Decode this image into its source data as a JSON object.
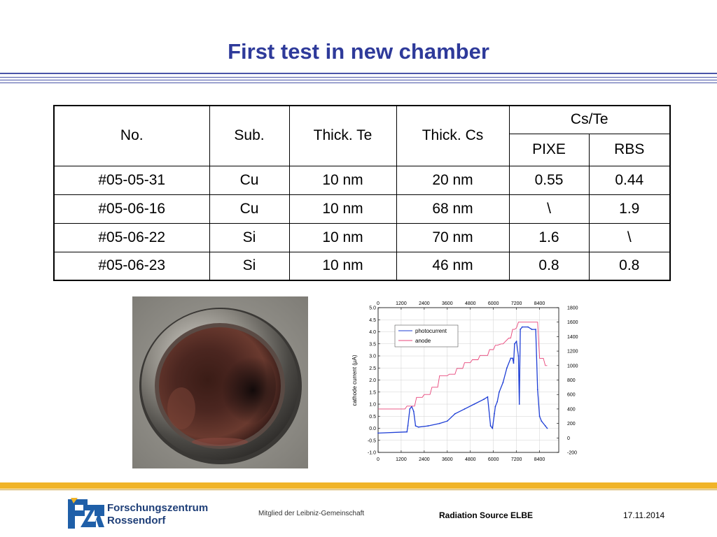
{
  "slide": {
    "title": "First test in new chamber"
  },
  "table": {
    "headers": {
      "no": "No.",
      "sub": "Sub.",
      "thick_te": "Thick. Te",
      "thick_cs": "Thick. Cs",
      "ratio": "Cs/Te",
      "pixe": "PIXE",
      "rbs": "RBS"
    },
    "rows": [
      [
        "#05-05-31",
        "Cu",
        "10 nm",
        "20 nm",
        "0.55",
        "0.44"
      ],
      [
        "#05-06-16",
        "Cu",
        "10 nm",
        "68 nm",
        "\\",
        "1.9"
      ],
      [
        "#05-06-22",
        "Si",
        "10 nm",
        "70 nm",
        "1.6",
        "\\"
      ],
      [
        "#05-06-23",
        "Si",
        "10 nm",
        "46 nm",
        "0.8",
        "0.8"
      ]
    ]
  },
  "chart_data": {
    "type": "line",
    "ylabel": "cathode current (µA)",
    "xlim": [
      0,
      9400
    ],
    "ylim": [
      -1.0,
      5.0
    ],
    "y2lim": [
      -200,
      1800
    ],
    "x_ticks": [
      "0",
      "1200",
      "2400",
      "3600",
      "4800",
      "6000",
      "7200",
      "8400"
    ],
    "y_ticks": [
      "-1.0",
      "-0.5",
      "0.0",
      "0.5",
      "1.0",
      "1.5",
      "2.0",
      "2.5",
      "3.0",
      "3.5",
      "4.0",
      "4.5",
      "5.0"
    ],
    "y2_ticks": [
      "-200",
      "0",
      "200",
      "400",
      "600",
      "800",
      "1000",
      "1200",
      "1400",
      "1600",
      "1800"
    ],
    "grid": true,
    "legend_position": "top-left",
    "series": [
      {
        "name": "photocurrent",
        "color": "#1f3fd6",
        "axis": "left",
        "x": [
          0,
          1500,
          1550,
          1650,
          1750,
          1850,
          1950,
          2100,
          2600,
          3200,
          3600,
          4000,
          4500,
          5000,
          5500,
          5700,
          5850,
          5950,
          6050,
          6100,
          6200,
          6300,
          6500,
          6700,
          6900,
          7000,
          7050,
          7100,
          7200,
          7300,
          7350,
          7400,
          7500,
          7800,
          8000,
          8200,
          8300,
          8400,
          8500,
          8700,
          8800
        ],
        "y": [
          -0.2,
          -0.15,
          0.1,
          0.8,
          0.9,
          0.7,
          0.1,
          0.05,
          0.1,
          0.2,
          0.3,
          0.6,
          0.8,
          1.0,
          1.2,
          1.3,
          0.1,
          0.0,
          0.6,
          0.9,
          1.1,
          1.5,
          1.9,
          2.5,
          2.9,
          2.9,
          2.7,
          3.5,
          3.6,
          3.0,
          1.0,
          4.1,
          4.2,
          4.2,
          4.1,
          4.1,
          1.6,
          0.5,
          0.3,
          0.1,
          0.0
        ]
      },
      {
        "name": "anode",
        "color": "#e8457a",
        "axis": "right",
        "x": [
          0,
          1400,
          1500,
          1900,
          2000,
          2300,
          2400,
          2700,
          2800,
          3100,
          3200,
          3600,
          3700,
          4000,
          4100,
          4400,
          4500,
          4800,
          4900,
          5200,
          5300,
          5700,
          5800,
          6000,
          6100,
          6200,
          6400,
          6500,
          6800,
          6900,
          7000,
          7100,
          7200,
          7300,
          8300,
          8400,
          8600,
          8700,
          8800
        ],
        "y": [
          400,
          400,
          440,
          440,
          560,
          560,
          600,
          600,
          700,
          700,
          860,
          860,
          880,
          880,
          960,
          960,
          1040,
          1040,
          1080,
          1080,
          1140,
          1140,
          1220,
          1220,
          1280,
          1280,
          1300,
          1300,
          1380,
          1380,
          1500,
          1500,
          1520,
          1600,
          1600,
          1100,
          1100,
          1000,
          1000
        ]
      }
    ]
  },
  "footer": {
    "org_line1": "Forschungszentrum",
    "org_line2": "Rossendorf",
    "membership": "Mitglied der Leibniz-Gemeinschaft",
    "project": "Radiation Source ELBE",
    "date": "17.11.2014",
    "colors": {
      "accent_bar": "#f0b429",
      "title": "#2e3a9a",
      "logo_blue": "#1f5fa8"
    }
  }
}
